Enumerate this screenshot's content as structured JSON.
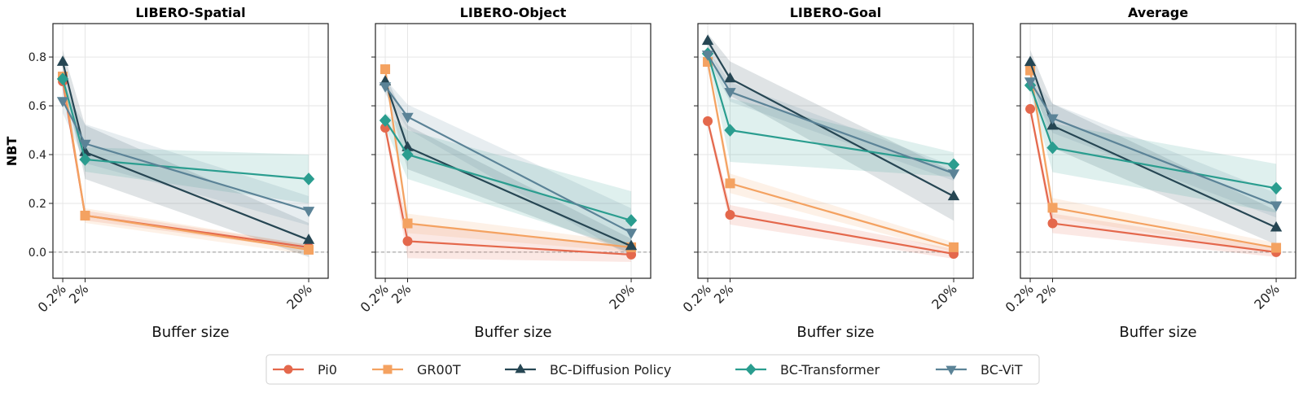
{
  "figure": {
    "ylabel": "NBT",
    "xlabel": "Buffer size",
    "x_ticks": [
      0.2,
      2,
      20
    ],
    "x_tick_labels": [
      "0.2%",
      "2%",
      "20%"
    ],
    "y_ticks": [
      0.0,
      0.2,
      0.4,
      0.6,
      0.8
    ],
    "y_tick_labels": [
      "0.0",
      "0.2",
      "0.4",
      "0.6",
      "0.8"
    ],
    "xlim": [
      -0.59,
      21.57
    ],
    "ylim": [
      -0.107,
      0.937
    ]
  },
  "legend": {
    "placement": "bottom-center",
    "entries": [
      {
        "name": "Pi0",
        "color": "#E4684C",
        "marker": "circle"
      },
      {
        "name": "GR00T",
        "color": "#F4A261",
        "marker": "square"
      },
      {
        "name": "BC-Diffusion Policy",
        "color": "#264653",
        "marker": "triangle-up"
      },
      {
        "name": "BC-Transformer",
        "color": "#2A9D8F",
        "marker": "diamond"
      },
      {
        "name": "BC-ViT",
        "color": "#5B8397",
        "marker": "triangle-down"
      }
    ]
  },
  "chart_data": [
    {
      "type": "line",
      "title": "LIBERO-Spatial",
      "xlabel": "Buffer size",
      "ylabel": "NBT",
      "x": [
        0.2,
        2,
        20
      ],
      "grid": true,
      "series": [
        {
          "name": "Pi0",
          "values": [
            0.7,
            0.15,
            0.02
          ],
          "std": [
            0.02,
            0.02,
            0.01
          ]
        },
        {
          "name": "GR00T",
          "values": [
            0.72,
            0.15,
            0.01
          ],
          "std": [
            0.02,
            0.03,
            0.02
          ]
        },
        {
          "name": "BC-Diffusion Policy",
          "values": [
            0.78,
            0.41,
            0.05
          ],
          "std": [
            0.05,
            0.11,
            0.07
          ]
        },
        {
          "name": "BC-Transformer",
          "values": [
            0.71,
            0.38,
            0.3
          ],
          "std": [
            0.03,
            0.05,
            0.1
          ]
        },
        {
          "name": "BC-ViT",
          "values": [
            0.62,
            0.445,
            0.17
          ],
          "std": [
            0.05,
            0.08,
            0.06
          ]
        }
      ]
    },
    {
      "type": "line",
      "title": "LIBERO-Object",
      "xlabel": "Buffer size",
      "ylabel": "",
      "x": [
        0.2,
        2,
        20
      ],
      "grid": true,
      "series": [
        {
          "name": "Pi0",
          "values": [
            0.51,
            0.045,
            -0.01
          ],
          "std": [
            0.02,
            0.07,
            0.03
          ]
        },
        {
          "name": "GR00T",
          "values": [
            0.75,
            0.118,
            0.02
          ],
          "std": [
            0.02,
            0.04,
            0.02
          ]
        },
        {
          "name": "BC-Diffusion Policy",
          "values": [
            0.7,
            0.43,
            0.025
          ],
          "std": [
            0.03,
            0.09,
            0.03
          ]
        },
        {
          "name": "BC-Transformer",
          "values": [
            0.54,
            0.4,
            0.13
          ],
          "std": [
            0.03,
            0.1,
            0.12
          ]
        },
        {
          "name": "BC-ViT",
          "values": [
            0.68,
            0.555,
            0.08
          ],
          "std": [
            0.03,
            0.05,
            0.1
          ]
        }
      ]
    },
    {
      "type": "line",
      "title": "LIBERO-Goal",
      "xlabel": "Buffer size",
      "ylabel": "",
      "x": [
        0.2,
        2,
        20
      ],
      "grid": true,
      "series": [
        {
          "name": "Pi0",
          "values": [
            0.537,
            0.153,
            -0.007
          ],
          "std": [
            0.02,
            0.04,
            0.02
          ]
        },
        {
          "name": "GR00T",
          "values": [
            0.78,
            0.282,
            0.02
          ],
          "std": [
            0.02,
            0.04,
            0.02
          ]
        },
        {
          "name": "BC-Diffusion Policy",
          "values": [
            0.866,
            0.712,
            0.229
          ],
          "std": [
            0.03,
            0.07,
            0.1
          ]
        },
        {
          "name": "BC-Transformer",
          "values": [
            0.814,
            0.5,
            0.359
          ],
          "std": [
            0.02,
            0.13,
            0.05
          ]
        },
        {
          "name": "BC-ViT",
          "values": [
            0.81,
            0.657,
            0.323
          ],
          "std": [
            0.02,
            0.04,
            0.03
          ]
        }
      ]
    },
    {
      "type": "line",
      "title": "Average",
      "xlabel": "Buffer size",
      "ylabel": "",
      "x": [
        0.2,
        2,
        20
      ],
      "grid": true,
      "series": [
        {
          "name": "Pi0",
          "values": [
            0.587,
            0.118,
            0.0
          ],
          "std": [
            0.02,
            0.04,
            0.02
          ]
        },
        {
          "name": "GR00T",
          "values": [
            0.745,
            0.182,
            0.018
          ],
          "std": [
            0.02,
            0.04,
            0.02
          ]
        },
        {
          "name": "BC-Diffusion Policy",
          "values": [
            0.779,
            0.518,
            0.101
          ],
          "std": [
            0.05,
            0.09,
            0.07
          ]
        },
        {
          "name": "BC-Transformer",
          "values": [
            0.684,
            0.428,
            0.262
          ],
          "std": [
            0.03,
            0.1,
            0.1
          ]
        },
        {
          "name": "BC-ViT",
          "values": [
            0.7,
            0.549,
            0.192
          ],
          "std": [
            0.03,
            0.06,
            0.05
          ]
        }
      ]
    }
  ]
}
